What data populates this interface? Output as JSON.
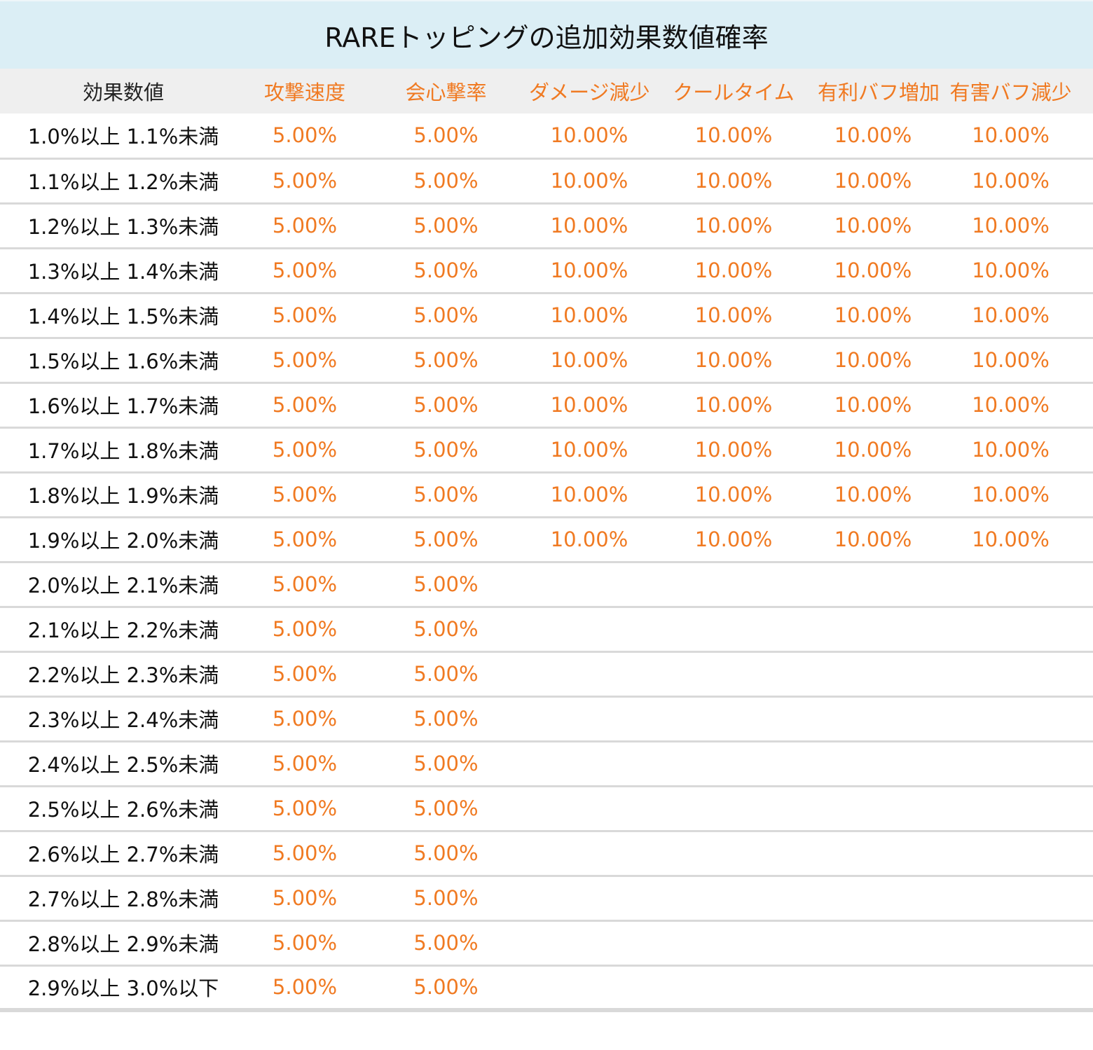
{
  "title": "RAREトッピングの追加効果数値確率",
  "headers": [
    "効果数値",
    "攻撃速度",
    "会心撃率",
    "ダメージ減少",
    "クールタイム",
    "有利バフ増加",
    "有害バフ減少"
  ],
  "rows": [
    {
      "range": "1.0%以上 1.1%未満",
      "values": [
        "5.00%",
        "5.00%",
        "10.00%",
        "10.00%",
        "10.00%",
        "10.00%"
      ]
    },
    {
      "range": "1.1%以上 1.2%未満",
      "values": [
        "5.00%",
        "5.00%",
        "10.00%",
        "10.00%",
        "10.00%",
        "10.00%"
      ]
    },
    {
      "range": "1.2%以上 1.3%未満",
      "values": [
        "5.00%",
        "5.00%",
        "10.00%",
        "10.00%",
        "10.00%",
        "10.00%"
      ]
    },
    {
      "range": "1.3%以上 1.4%未満",
      "values": [
        "5.00%",
        "5.00%",
        "10.00%",
        "10.00%",
        "10.00%",
        "10.00%"
      ]
    },
    {
      "range": "1.4%以上 1.5%未満",
      "values": [
        "5.00%",
        "5.00%",
        "10.00%",
        "10.00%",
        "10.00%",
        "10.00%"
      ]
    },
    {
      "range": "1.5%以上 1.6%未満",
      "values": [
        "5.00%",
        "5.00%",
        "10.00%",
        "10.00%",
        "10.00%",
        "10.00%"
      ]
    },
    {
      "range": "1.6%以上 1.7%未満",
      "values": [
        "5.00%",
        "5.00%",
        "10.00%",
        "10.00%",
        "10.00%",
        "10.00%"
      ]
    },
    {
      "range": "1.7%以上 1.8%未満",
      "values": [
        "5.00%",
        "5.00%",
        "10.00%",
        "10.00%",
        "10.00%",
        "10.00%"
      ]
    },
    {
      "range": "1.8%以上 1.9%未満",
      "values": [
        "5.00%",
        "5.00%",
        "10.00%",
        "10.00%",
        "10.00%",
        "10.00%"
      ]
    },
    {
      "range": "1.9%以上 2.0%未満",
      "values": [
        "5.00%",
        "5.00%",
        "10.00%",
        "10.00%",
        "10.00%",
        "10.00%"
      ]
    },
    {
      "range": "2.0%以上 2.1%未満",
      "values": [
        "5.00%",
        "5.00%",
        "",
        "",
        "",
        ""
      ]
    },
    {
      "range": "2.1%以上 2.2%未満",
      "values": [
        "5.00%",
        "5.00%",
        "",
        "",
        "",
        ""
      ]
    },
    {
      "range": "2.2%以上 2.3%未満",
      "values": [
        "5.00%",
        "5.00%",
        "",
        "",
        "",
        ""
      ]
    },
    {
      "range": "2.3%以上 2.4%未満",
      "values": [
        "5.00%",
        "5.00%",
        "",
        "",
        "",
        ""
      ]
    },
    {
      "range": "2.4%以上 2.5%未満",
      "values": [
        "5.00%",
        "5.00%",
        "",
        "",
        "",
        ""
      ]
    },
    {
      "range": "2.5%以上 2.6%未満",
      "values": [
        "5.00%",
        "5.00%",
        "",
        "",
        "",
        ""
      ]
    },
    {
      "range": "2.6%以上 2.7%未満",
      "values": [
        "5.00%",
        "5.00%",
        "",
        "",
        "",
        ""
      ]
    },
    {
      "range": "2.7%以上 2.8%未満",
      "values": [
        "5.00%",
        "5.00%",
        "",
        "",
        "",
        ""
      ]
    },
    {
      "range": "2.8%以上 2.9%未満",
      "values": [
        "5.00%",
        "5.00%",
        "",
        "",
        "",
        ""
      ]
    },
    {
      "range": "2.9%以上 3.0%以下",
      "values": [
        "5.00%",
        "5.00%",
        "",
        "",
        "",
        ""
      ]
    }
  ],
  "colors": {
    "title_bg": "#dbeef5",
    "header_bg": "#efefef",
    "accent": "#f07a22",
    "text": "#111111",
    "rule": "#d9d9d9"
  }
}
